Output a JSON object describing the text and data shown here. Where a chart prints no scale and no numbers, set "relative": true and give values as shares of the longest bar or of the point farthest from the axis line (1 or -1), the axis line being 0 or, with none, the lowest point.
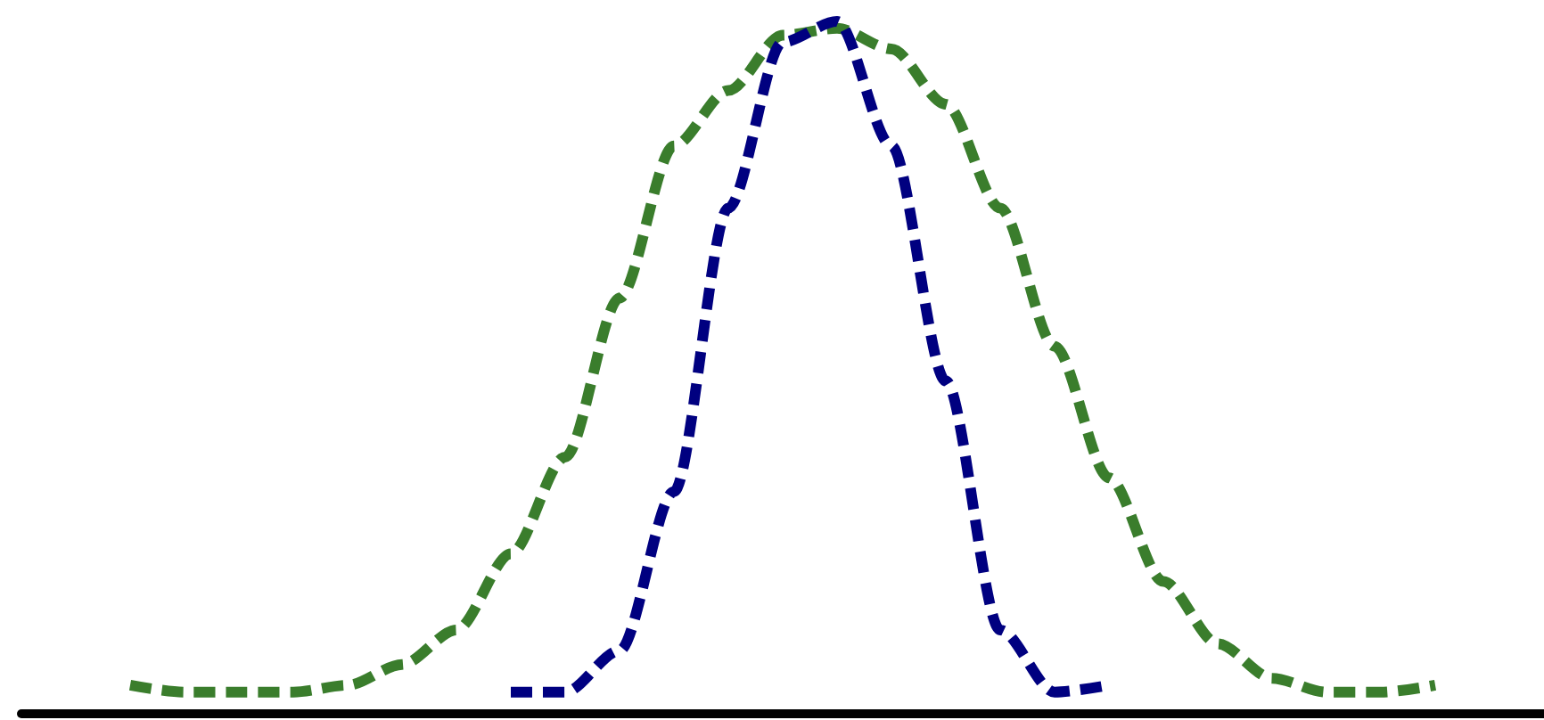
{
  "chart_data": {
    "type": "line",
    "relative": true,
    "line_style": "dashed",
    "marker": "none",
    "grid": false,
    "tick_labels": false,
    "categories": [
      null,
      null,
      null,
      null,
      null,
      null,
      null,
      null,
      null,
      null,
      null,
      null,
      null,
      null,
      null,
      null,
      null,
      null,
      null,
      null,
      null,
      null,
      null,
      null,
      null,
      null,
      null,
      null,
      null
    ],
    "series": [
      {
        "color": "#3a7d2c",
        "values": [
          null,
          null,
          0.04,
          0.03,
          0.03,
          0.03,
          0.04,
          0.07,
          0.12,
          0.23,
          0.37,
          0.6,
          0.82,
          0.9,
          0.98,
          0.99,
          0.96,
          0.88,
          0.73,
          0.53,
          0.34,
          0.19,
          0.1,
          0.05,
          0.03,
          0.03,
          0.04,
          null,
          null
        ]
      },
      {
        "color": "#000080",
        "values": [
          null,
          null,
          null,
          null,
          null,
          null,
          null,
          null,
          null,
          0.03,
          0.03,
          0.09,
          0.32,
          0.73,
          0.97,
          1,
          0.82,
          0.48,
          0.12,
          0.03,
          0.04,
          null,
          null,
          null,
          null,
          null,
          null,
          null,
          null
        ]
      }
    ]
  }
}
